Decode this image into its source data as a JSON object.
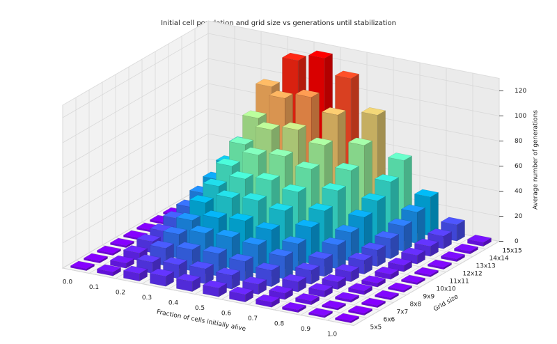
{
  "chart_data": {
    "type": "bar3d",
    "title": "Initial cell population and grid size vs generations until stabilization",
    "x_label": "Fraction of cells initially alive",
    "y_label": "Grid size",
    "z_label": "Average number of generations",
    "categories": [
      "0.0",
      "0.1",
      "0.2",
      "0.3",
      "0.4",
      "0.5",
      "0.6",
      "0.7",
      "0.8",
      "0.9",
      "1.0"
    ],
    "series": [
      {
        "name": "5x5",
        "values": [
          0,
          3,
          6,
          8,
          8,
          7,
          6,
          4,
          2,
          1,
          0
        ]
      },
      {
        "name": "6x6",
        "values": [
          0,
          4,
          9,
          11,
          12,
          11,
          8,
          5,
          3,
          1,
          0
        ]
      },
      {
        "name": "7x7",
        "values": [
          0,
          6,
          14,
          17,
          18,
          16,
          13,
          8,
          5,
          2,
          0
        ]
      },
      {
        "name": "8x8",
        "values": [
          0,
          9,
          19,
          24,
          25,
          23,
          18,
          11,
          6,
          3,
          1
        ]
      },
      {
        "name": "9x9",
        "values": [
          0,
          11,
          24,
          30,
          32,
          29,
          22,
          14,
          8,
          3,
          1
        ]
      },
      {
        "name": "10x10",
        "values": [
          0,
          15,
          32,
          40,
          42,
          38,
          29,
          19,
          11,
          4,
          1
        ]
      },
      {
        "name": "11x11",
        "values": [
          0,
          18,
          39,
          49,
          52,
          47,
          36,
          23,
          13,
          5,
          1
        ]
      },
      {
        "name": "12x12",
        "values": [
          0,
          23,
          49,
          62,
          65,
          59,
          46,
          29,
          16,
          7,
          1
        ]
      },
      {
        "name": "13x13",
        "values": [
          0,
          28,
          60,
          76,
          80,
          72,
          56,
          36,
          20,
          8,
          2
        ]
      },
      {
        "name": "14x14",
        "values": [
          0,
          35,
          75,
          95,
          100,
          90,
          70,
          45,
          25,
          10,
          2
        ]
      },
      {
        "name": "15x15",
        "values": [
          0,
          44,
          94,
          119,
          125,
          113,
          88,
          56,
          31,
          13,
          3
        ]
      }
    ],
    "colormap": "rainbow",
    "zlim": [
      0,
      130
    ],
    "zticks": [
      0,
      20,
      40,
      60,
      80,
      100,
      120
    ],
    "grid": true
  }
}
